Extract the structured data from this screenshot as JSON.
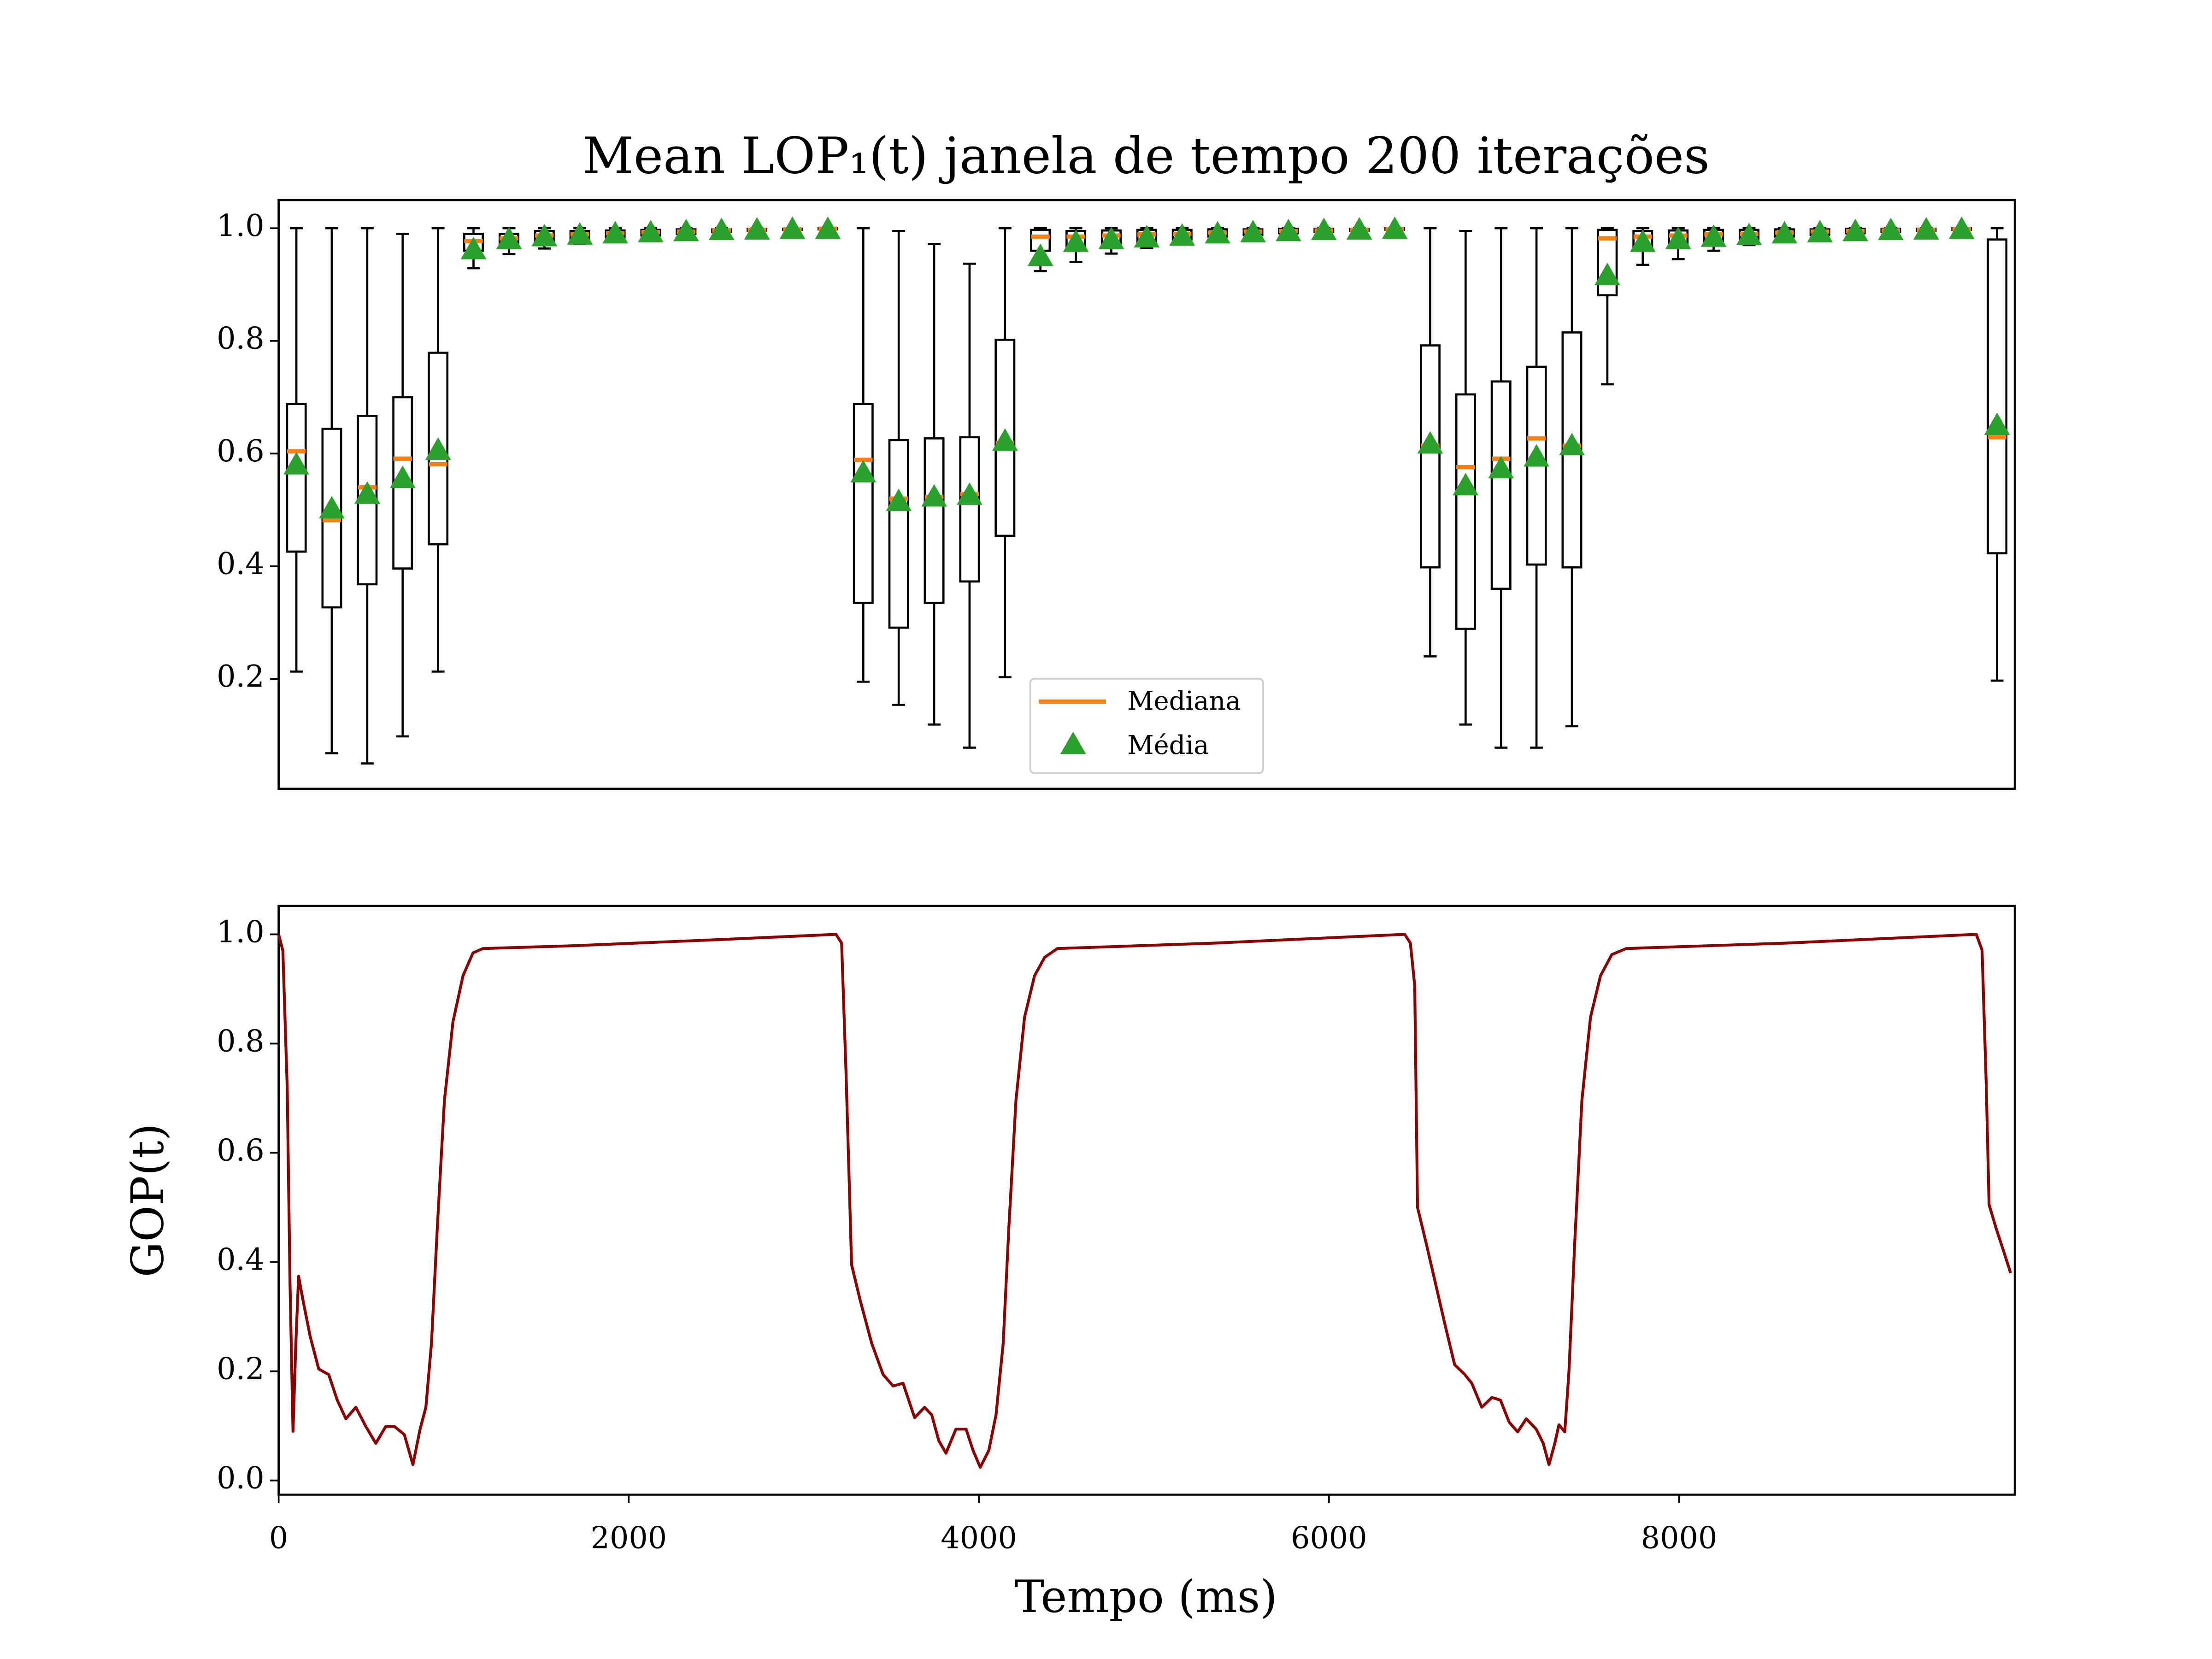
{
  "chart_data": [
    {
      "type": "box",
      "title": "Mean LOP₁(t) janela de tempo 200 iterações",
      "box_color": "#000000",
      "whisker_low": [
        0.213,
        0.068,
        0.05,
        0.098,
        0.213,
        0.929,
        0.954,
        0.964,
        0.972,
        0.978,
        0.983,
        0.987,
        0.99,
        0.993,
        0.995,
        0.996,
        0.195,
        0.154,
        0.119,
        0.078,
        0.203,
        0.924,
        0.94,
        0.955,
        0.965,
        0.972,
        0.978,
        0.983,
        0.987,
        0.99,
        0.993,
        0.995,
        0.24,
        0.119,
        0.078,
        0.078,
        0.116,
        0.723,
        0.935,
        0.945,
        0.96,
        0.97,
        0.977,
        0.982,
        0.987,
        0.99,
        0.993,
        0.995,
        0.197
      ],
      "q1": [
        0.426,
        0.327,
        0.368,
        0.396,
        0.439,
        0.96,
        0.97,
        0.975,
        0.98,
        0.984,
        0.987,
        0.99,
        0.993,
        0.995,
        0.997,
        0.998,
        0.335,
        0.291,
        0.335,
        0.373,
        0.454,
        0.96,
        0.965,
        0.97,
        0.975,
        0.98,
        0.985,
        0.988,
        0.991,
        0.993,
        0.995,
        0.997,
        0.398,
        0.289,
        0.36,
        0.403,
        0.398,
        0.881,
        0.965,
        0.97,
        0.975,
        0.98,
        0.985,
        0.988,
        0.991,
        0.993,
        0.995,
        0.997,
        0.423
      ],
      "q3": [
        0.688,
        0.644,
        0.667,
        0.7,
        0.779,
        0.99,
        0.99,
        0.995,
        0.995,
        0.996,
        0.997,
        0.998,
        0.998,
        0.999,
        0.999,
        1.0,
        0.688,
        0.624,
        0.627,
        0.629,
        0.802,
        0.997,
        0.995,
        0.996,
        0.997,
        0.997,
        0.998,
        0.998,
        0.999,
        0.999,
        0.999,
        1.0,
        0.792,
        0.705,
        0.728,
        0.754,
        0.815,
        0.997,
        0.995,
        0.996,
        0.997,
        0.997,
        0.998,
        0.998,
        0.999,
        0.999,
        0.999,
        1.0,
        0.98
      ],
      "whisker_high": [
        1.0,
        1.0,
        1.0,
        0.99,
        1.0,
        1.0,
        1.0,
        1.0,
        1.0,
        1.0,
        1.0,
        1.0,
        1.0,
        1.0,
        1.0,
        1.0,
        1.0,
        0.995,
        0.972,
        0.937,
        1.0,
        1.0,
        1.0,
        1.0,
        1.0,
        1.0,
        1.0,
        1.0,
        1.0,
        1.0,
        1.0,
        1.0,
        1.0,
        0.995,
        1.0,
        1.0,
        1.0,
        1.0,
        1.0,
        1.0,
        1.0,
        1.0,
        1.0,
        1.0,
        1.0,
        1.0,
        1.0,
        1.0,
        1.0
      ],
      "median": {
        "name": "Mediana",
        "color": "#ff7f0e",
        "values": [
          0.604,
          0.482,
          0.54,
          0.591,
          0.581,
          0.977,
          0.982,
          0.987,
          0.989,
          0.991,
          0.993,
          0.994,
          0.996,
          0.997,
          0.998,
          0.999,
          0.589,
          0.52,
          0.523,
          0.528,
          0.619,
          0.985,
          0.985,
          0.987,
          0.989,
          0.99,
          0.992,
          0.994,
          0.995,
          0.996,
          0.997,
          0.998,
          0.614,
          0.576,
          0.591,
          0.627,
          0.614,
          0.982,
          0.985,
          0.987,
          0.989,
          0.99,
          0.992,
          0.994,
          0.995,
          0.996,
          0.997,
          0.998,
          0.629
        ]
      },
      "mean": {
        "name": "Média",
        "color": "#2ca02c",
        "values": [
          0.58,
          0.502,
          0.528,
          0.556,
          0.606,
          0.962,
          0.98,
          0.985,
          0.988,
          0.99,
          0.992,
          0.994,
          0.996,
          0.997,
          0.998,
          0.998,
          0.566,
          0.515,
          0.523,
          0.526,
          0.622,
          0.95,
          0.975,
          0.98,
          0.983,
          0.986,
          0.99,
          0.992,
          0.994,
          0.996,
          0.997,
          0.998,
          0.617,
          0.543,
          0.573,
          0.594,
          0.614,
          0.916,
          0.975,
          0.98,
          0.984,
          0.987,
          0.99,
          0.992,
          0.994,
          0.996,
          0.997,
          0.998,
          0.65
        ]
      },
      "legend": "lower center",
      "ylim": [
        0.005,
        1.05
      ],
      "yticks": [
        0.2,
        0.4,
        0.6,
        0.8,
        {
          "value": 1.0,
          "label": "1.0"
        }
      ]
    },
    {
      "type": "line",
      "xlabel": "Tempo (ms)",
      "ylabel": "GOP(t)",
      "x": [
        0,
        24,
        49,
        65,
        82,
        98,
        114,
        139,
        180,
        229,
        286,
        335,
        384,
        441,
        498,
        555,
        612,
        661,
        718,
        767,
        808,
        841,
        873,
        906,
        947,
        996,
        1053,
        1110,
        1167,
        1673,
        2490,
        3184,
        3216,
        3241,
        3273,
        3322,
        3388,
        3453,
        3510,
        3567,
        3633,
        3690,
        3731,
        3771,
        3812,
        3869,
        3927,
        3967,
        4008,
        4057,
        4098,
        4139,
        4171,
        4212,
        4261,
        4318,
        4376,
        4449,
        5347,
        6433,
        6465,
        6490,
        6506,
        6555,
        6612,
        6669,
        6718,
        6776,
        6816,
        6873,
        6931,
        6980,
        7029,
        7078,
        7127,
        7184,
        7224,
        7257,
        7290,
        7314,
        7347,
        7371,
        7404,
        7445,
        7494,
        7551,
        7616,
        7698,
        8612,
        9698,
        9731,
        9755,
        9771,
        9812,
        9853,
        9894
      ],
      "series": [
        {
          "color": "#8b0000",
          "values": [
            1.0,
            0.97,
            0.72,
            0.36,
            0.09,
            0.25,
            0.374,
            0.33,
            0.264,
            0.204,
            0.194,
            0.147,
            0.113,
            0.134,
            0.099,
            0.068,
            0.099,
            0.099,
            0.084,
            0.029,
            0.094,
            0.134,
            0.251,
            0.461,
            0.696,
            0.84,
            0.924,
            0.966,
            0.974,
            0.979,
            0.99,
            1.0,
            0.984,
            0.749,
            0.395,
            0.33,
            0.251,
            0.194,
            0.173,
            0.178,
            0.115,
            0.134,
            0.12,
            0.073,
            0.05,
            0.094,
            0.094,
            0.055,
            0.024,
            0.055,
            0.12,
            0.251,
            0.461,
            0.696,
            0.848,
            0.924,
            0.958,
            0.974,
            0.984,
            1.0,
            0.984,
            0.906,
            0.5,
            0.435,
            0.356,
            0.277,
            0.212,
            0.194,
            0.178,
            0.134,
            0.152,
            0.147,
            0.107,
            0.089,
            0.113,
            0.094,
            0.068,
            0.029,
            0.068,
            0.102,
            0.089,
            0.199,
            0.435,
            0.696,
            0.848,
            0.924,
            0.963,
            0.974,
            0.984,
            1.0,
            0.971,
            0.723,
            0.505,
            0.461,
            0.421,
            0.38
          ]
        }
      ],
      "xlim": [
        0,
        9918
      ],
      "ylim": [
        -0.026,
        1.052
      ],
      "xticks": [
        0,
        2000,
        4000,
        6000,
        8000
      ],
      "yticks": [
        {
          "value": 0.0,
          "label": "0.0"
        },
        0.2,
        0.4,
        0.6,
        0.8,
        {
          "value": 1.0,
          "label": "1.0"
        }
      ]
    }
  ]
}
